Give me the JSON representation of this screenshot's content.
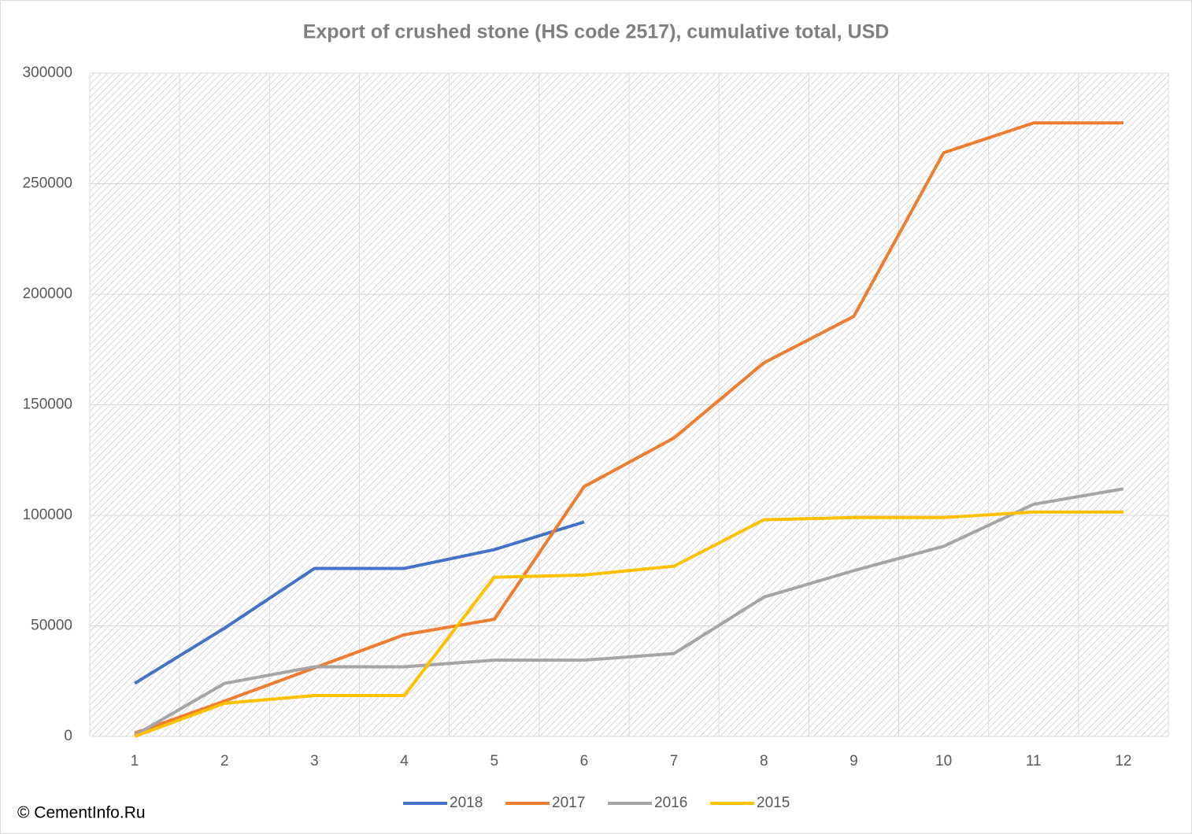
{
  "chart_data": {
    "type": "line",
    "title": "Export of crushed stone (HS code 2517), cumulative total, USD",
    "source": "© CementInfo.Ru",
    "categories": [
      "1",
      "2",
      "3",
      "4",
      "5",
      "6",
      "7",
      "8",
      "9",
      "10",
      "11",
      "12"
    ],
    "series": [
      {
        "name": "2018",
        "color": "#4472c4",
        "values": [
          24000,
          49000,
          76000,
          76000,
          84500,
          97000,
          null,
          null,
          null,
          null,
          null,
          null
        ]
      },
      {
        "name": "2017",
        "color": "#ed7d31",
        "values": [
          1500,
          16000,
          31000,
          46000,
          53000,
          113000,
          135000,
          169000,
          190000,
          264000,
          277500,
          277500
        ]
      },
      {
        "name": "2016",
        "color": "#a5a5a5",
        "values": [
          500,
          24000,
          31500,
          31500,
          34500,
          34500,
          37500,
          63000,
          75000,
          86000,
          105000,
          112000
        ]
      },
      {
        "name": "2015",
        "color": "#ffc000",
        "values": [
          0,
          15000,
          18500,
          18500,
          72000,
          73000,
          77000,
          98000,
          99000,
          99000,
          101500,
          101500
        ]
      }
    ],
    "ylim": [
      0,
      300000
    ],
    "yticks": [
      0,
      50000,
      100000,
      150000,
      200000,
      250000,
      300000
    ],
    "grid": true,
    "legend": "bottom"
  }
}
